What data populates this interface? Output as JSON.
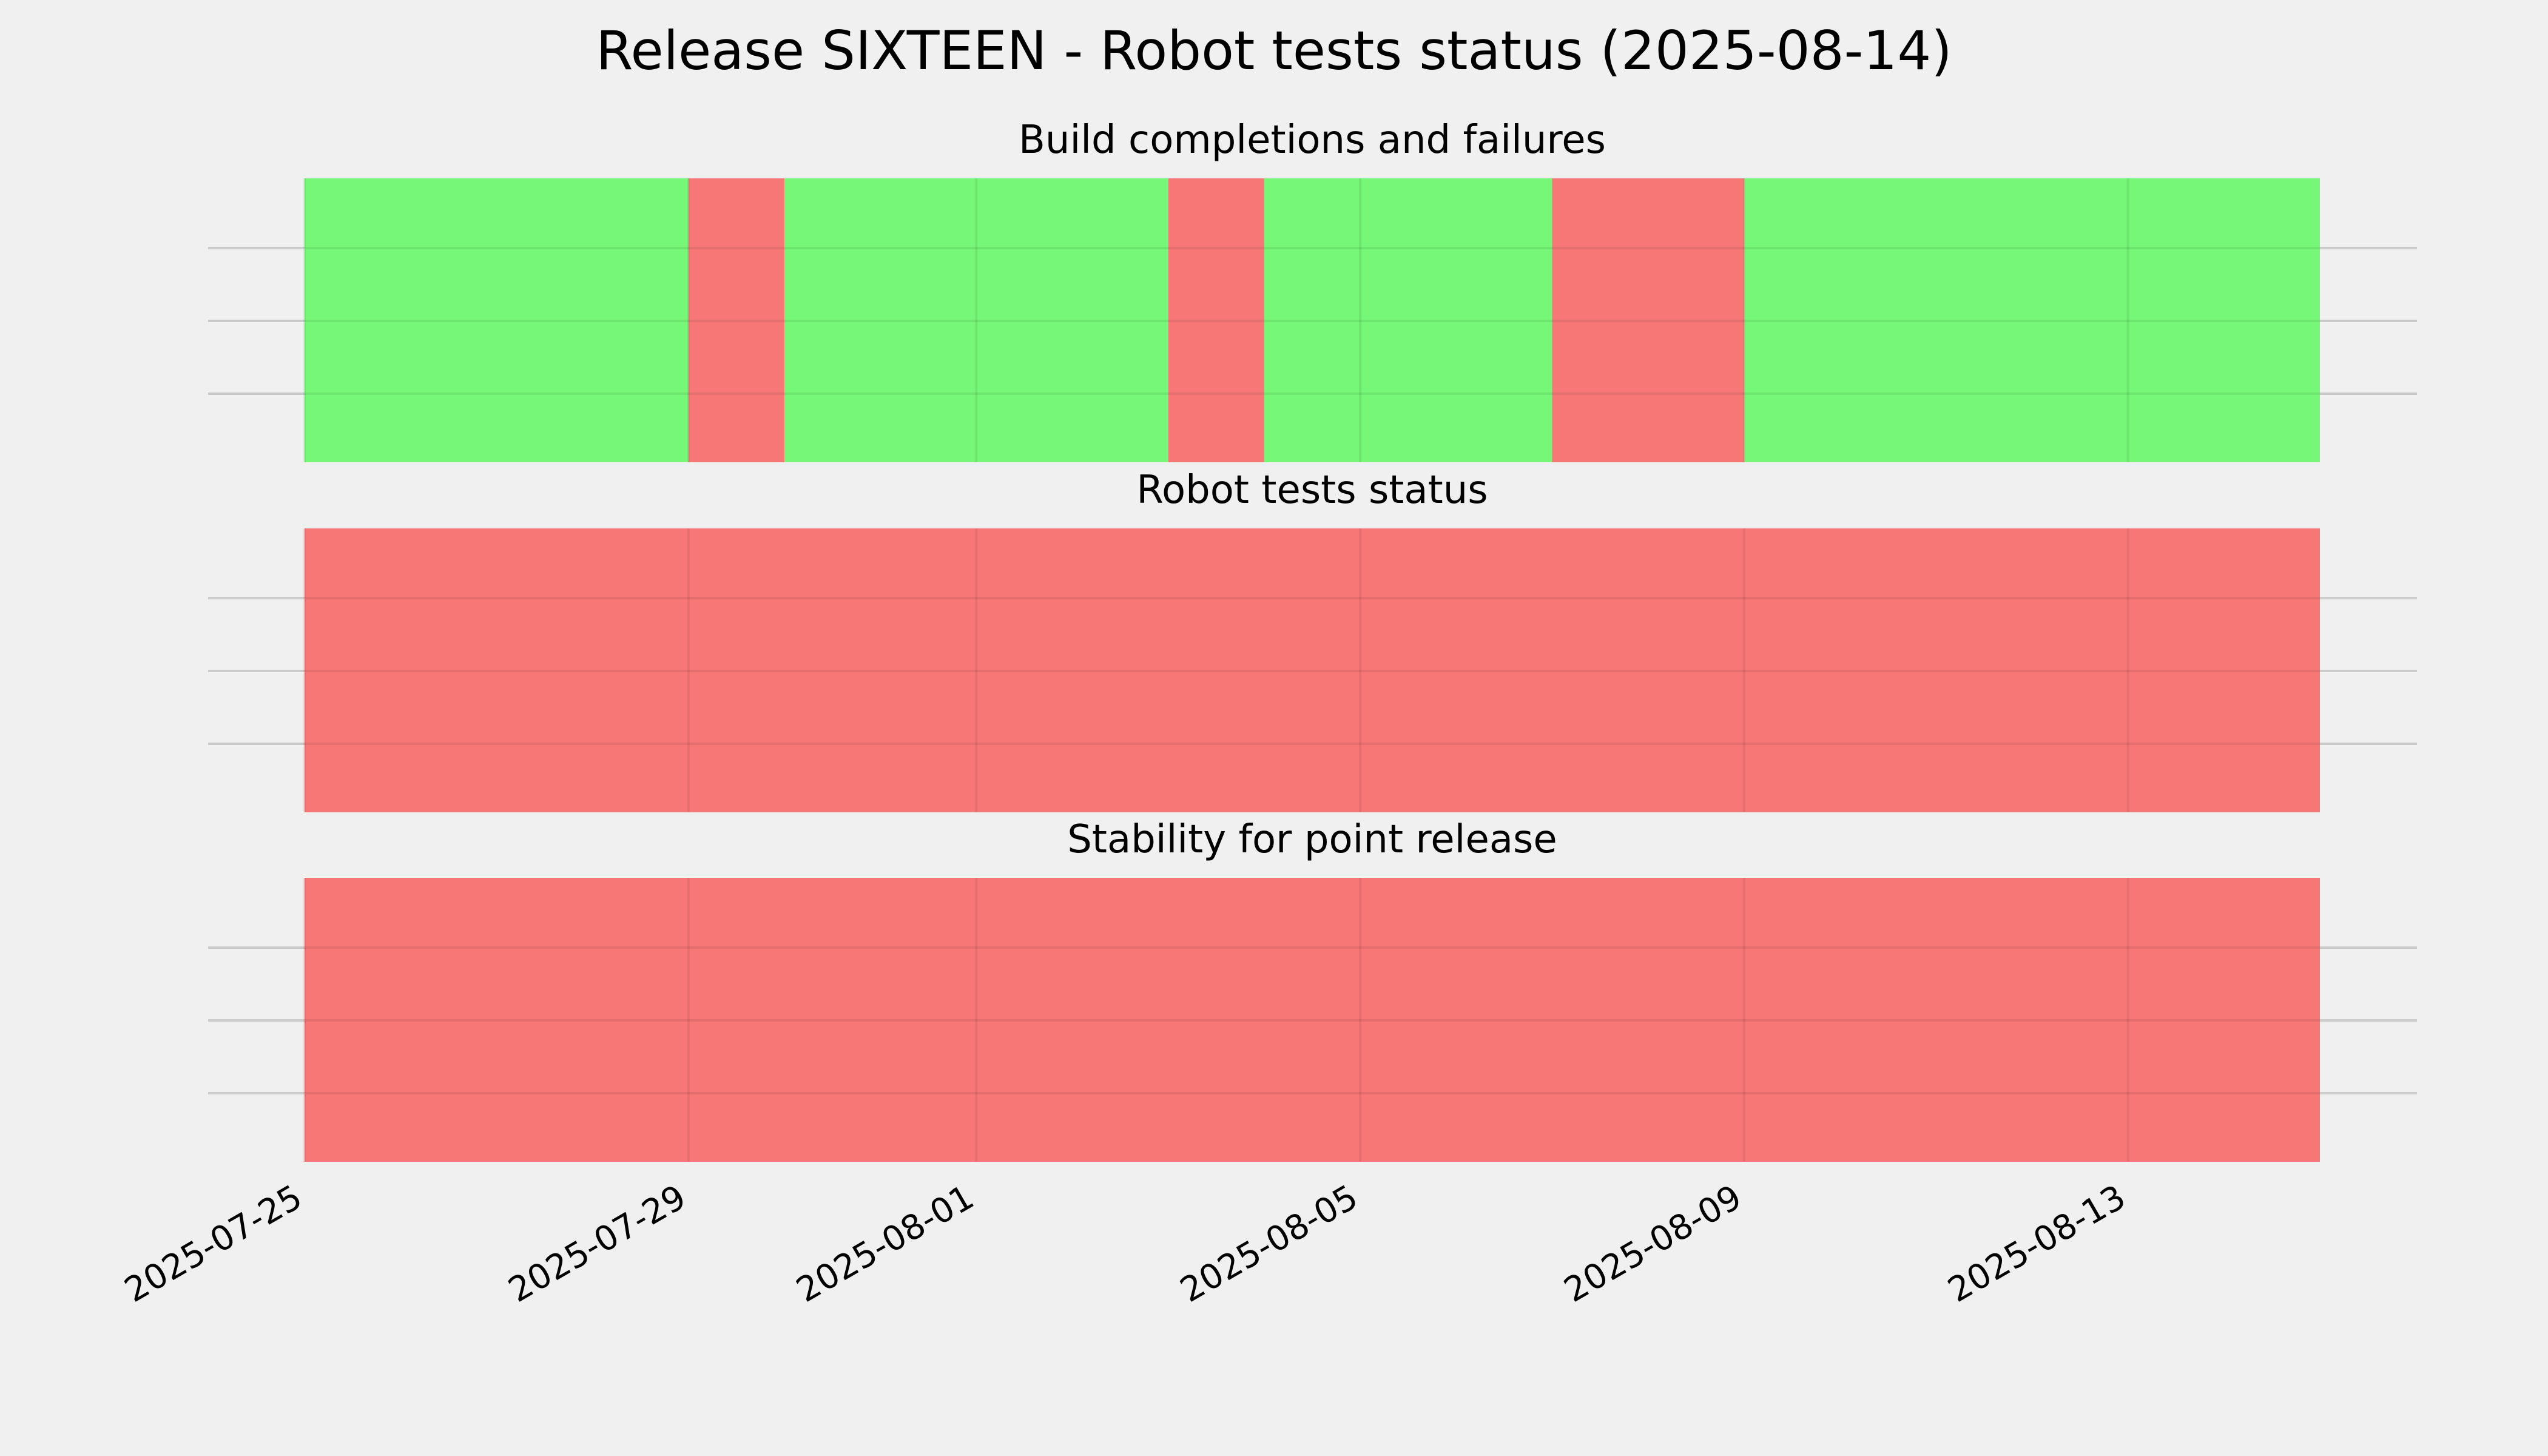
{
  "chart_data": {
    "type": "timeline",
    "title": "Release SIXTEEN - Robot tests status (2025-08-14)",
    "x_range": [
      "2025-07-25",
      "2025-08-15"
    ],
    "x_ticks": [
      "2025-07-25",
      "2025-07-29",
      "2025-08-01",
      "2025-08-05",
      "2025-08-09",
      "2025-08-13"
    ],
    "grid": true,
    "status_colors": {
      "pass": "#77f777",
      "fail": "#f77777"
    },
    "panels": [
      {
        "title": "Build completions and failures",
        "segments": [
          {
            "start": "2025-07-25",
            "end": "2025-07-29",
            "status": "pass"
          },
          {
            "start": "2025-07-29",
            "end": "2025-07-30",
            "status": "fail"
          },
          {
            "start": "2025-07-30",
            "end": "2025-08-03",
            "status": "pass"
          },
          {
            "start": "2025-08-03",
            "end": "2025-08-04",
            "status": "fail"
          },
          {
            "start": "2025-08-04",
            "end": "2025-08-07",
            "status": "pass"
          },
          {
            "start": "2025-08-07",
            "end": "2025-08-09",
            "status": "fail"
          },
          {
            "start": "2025-08-09",
            "end": "2025-08-15",
            "status": "pass"
          }
        ]
      },
      {
        "title": "Robot tests status",
        "segments": [
          {
            "start": "2025-07-25",
            "end": "2025-08-15",
            "status": "fail"
          }
        ]
      },
      {
        "title": "Stability for point release",
        "segments": [
          {
            "start": "2025-07-25",
            "end": "2025-08-15",
            "status": "fail"
          }
        ]
      }
    ]
  }
}
